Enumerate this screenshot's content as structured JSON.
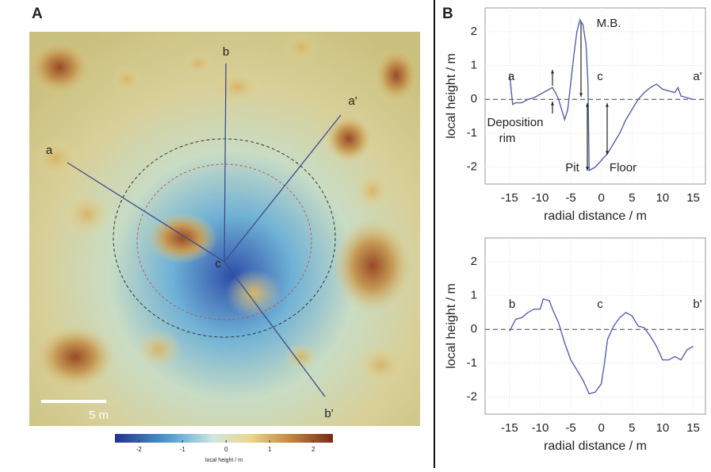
{
  "panel_labels": [
    "A",
    "B"
  ],
  "map": {
    "labels": [
      "a",
      "b",
      "a'",
      "c",
      "b'"
    ],
    "scale_bar": "5 m",
    "colorbar": {
      "label": "local height / m",
      "lim": [
        -2.55,
        2.45
      ],
      "ticks": [
        -2,
        -1,
        0,
        1,
        2
      ]
    }
  },
  "chart_data": [
    {
      "type": "line",
      "xlabel": "radial distance / m",
      "ylabel": "local height / m",
      "xlim": [
        -19,
        17
      ],
      "ylim": [
        -2.5,
        2.7
      ],
      "xticks": [
        -15,
        -10,
        -5,
        0,
        5,
        10,
        15
      ],
      "yticks": [
        -2,
        -1,
        0,
        1,
        2
      ],
      "grid": true,
      "zero_line": true,
      "color": "#5561a8",
      "x": [
        -15,
        -14.5,
        -14,
        -13,
        -12,
        -11,
        -10,
        -9,
        -8,
        -7.5,
        -7,
        -6.5,
        -6,
        -5.5,
        -5,
        -4.5,
        -4,
        -3.5,
        -3,
        -2.5,
        -2.2,
        -2,
        -1,
        0,
        1,
        2,
        3,
        4,
        5,
        6,
        7,
        8,
        9,
        10,
        11,
        12,
        12.5,
        13,
        14,
        15
      ],
      "values": [
        0.75,
        -0.15,
        -0.1,
        -0.1,
        0.0,
        0.05,
        0.15,
        0.25,
        0.35,
        0.2,
        0.0,
        -0.3,
        -0.6,
        -0.3,
        0.5,
        1.3,
        2.0,
        2.35,
        2.2,
        1.6,
        0.5,
        -2.1,
        -2.0,
        -1.8,
        -1.6,
        -1.3,
        -1.0,
        -0.6,
        -0.3,
        0.0,
        0.2,
        0.35,
        0.45,
        0.3,
        0.25,
        0.2,
        0.35,
        0.1,
        0.05,
        0.0
      ],
      "annotations": [
        "a",
        "c",
        "a'",
        "M.B.",
        "Deposition",
        "rim",
        "Pit",
        "Floor"
      ]
    },
    {
      "type": "line",
      "xlabel": "radial distance / m",
      "ylabel": "local height / m",
      "xlim": [
        -19,
        17
      ],
      "ylim": [
        -2.5,
        2.7
      ],
      "xticks": [
        -15,
        -10,
        -5,
        0,
        5,
        10,
        15
      ],
      "yticks": [
        -2,
        -1,
        0,
        1,
        2
      ],
      "grid": true,
      "zero_line": true,
      "color": "#5561a8",
      "x": [
        -15,
        -14,
        -13,
        -12,
        -11,
        -10,
        -9.5,
        -8.5,
        -8,
        -7,
        -6,
        -5,
        -4,
        -3,
        -2,
        -1,
        0,
        0.5,
        1,
        2,
        3,
        4,
        5,
        6,
        7,
        8,
        9,
        10,
        11,
        12,
        13,
        14,
        15
      ],
      "values": [
        -0.05,
        0.3,
        0.35,
        0.5,
        0.6,
        0.6,
        0.9,
        0.85,
        0.6,
        0.2,
        -0.4,
        -0.9,
        -1.2,
        -1.5,
        -1.9,
        -1.85,
        -1.6,
        -1.0,
        -0.3,
        0.1,
        0.35,
        0.5,
        0.4,
        0.1,
        0.05,
        -0.2,
        -0.5,
        -0.9,
        -0.9,
        -0.8,
        -0.9,
        -0.6,
        -0.5
      ],
      "annotations": [
        "b",
        "c",
        "b'"
      ]
    }
  ]
}
